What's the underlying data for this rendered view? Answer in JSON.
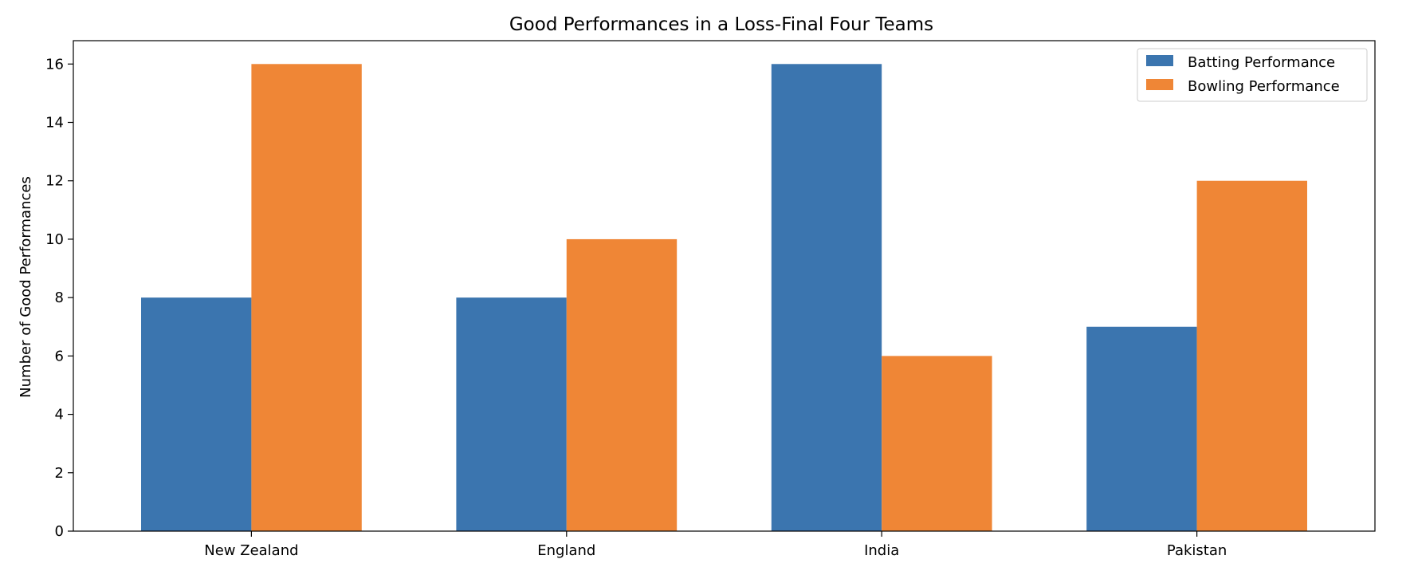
{
  "chart_data": {
    "type": "bar",
    "title": "Good Performances in a Loss-Final Four Teams",
    "xlabel": "",
    "ylabel": "Number of Good Performances",
    "categories": [
      "New Zealand",
      "England",
      "India",
      "Pakistan"
    ],
    "series": [
      {
        "name": "Batting Performance",
        "values": [
          8,
          8,
          16,
          7
        ],
        "color": "#3b75af"
      },
      {
        "name": "Bowling Performance",
        "values": [
          16,
          10,
          6,
          12
        ],
        "color": "#ef8636"
      }
    ],
    "ylim": [
      0,
      16.8
    ],
    "yticks": [
      0,
      2,
      4,
      6,
      8,
      10,
      12,
      14,
      16
    ],
    "grid": false,
    "legend_position": "top-right"
  }
}
